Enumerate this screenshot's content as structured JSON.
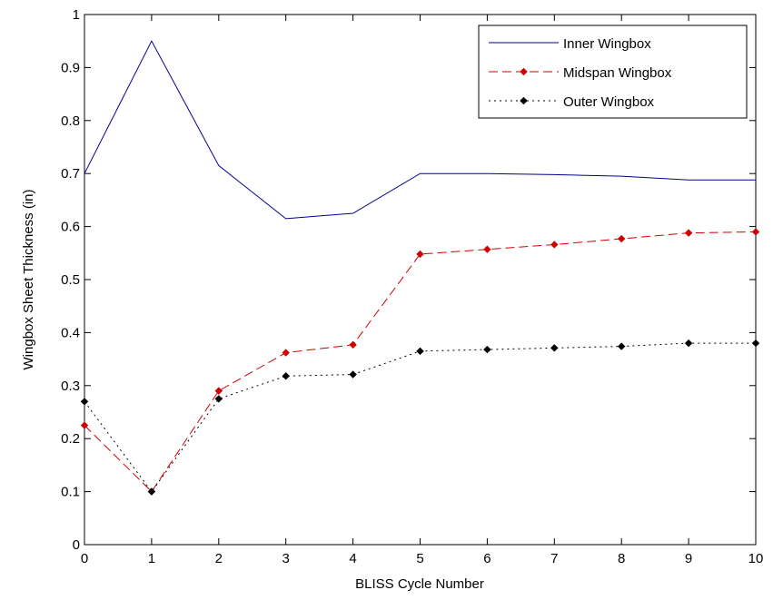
{
  "chart_data": {
    "type": "line",
    "x_label": "BLISS Cycle Number",
    "y_label": "Wingbox Sheet Thickness (in)",
    "x": [
      0,
      1,
      2,
      3,
      4,
      5,
      6,
      7,
      8,
      9,
      10
    ],
    "xlim": [
      0,
      10
    ],
    "xticks": [
      0,
      1,
      2,
      3,
      4,
      5,
      6,
      7,
      8,
      9,
      10
    ],
    "ylim": [
      0,
      1
    ],
    "yticks": [
      0,
      0.1,
      0.2,
      0.3,
      0.4,
      0.5,
      0.6,
      0.7,
      0.8,
      0.9,
      1
    ],
    "grid": false,
    "legend": "northeast",
    "series": [
      {
        "name": "Inner Wingbox",
        "color": "#00008b",
        "dash": "solid",
        "marker": "none",
        "values": [
          0.7,
          0.95,
          0.715,
          0.615,
          0.625,
          0.7,
          0.7,
          0.698,
          0.695,
          0.688,
          0.688
        ]
      },
      {
        "name": "Midspan Wingbox",
        "color": "#d00000",
        "dash": "dashed",
        "marker": "diamond",
        "values": [
          0.225,
          0.1,
          0.29,
          0.362,
          0.377,
          0.548,
          0.557,
          0.566,
          0.577,
          0.588,
          0.59
        ]
      },
      {
        "name": "Outer Wingbox",
        "color": "#000000",
        "dash": "dotted",
        "marker": "diamond",
        "values": [
          0.27,
          0.1,
          0.275,
          0.318,
          0.321,
          0.365,
          0.368,
          0.371,
          0.374,
          0.38,
          0.38
        ]
      }
    ]
  }
}
